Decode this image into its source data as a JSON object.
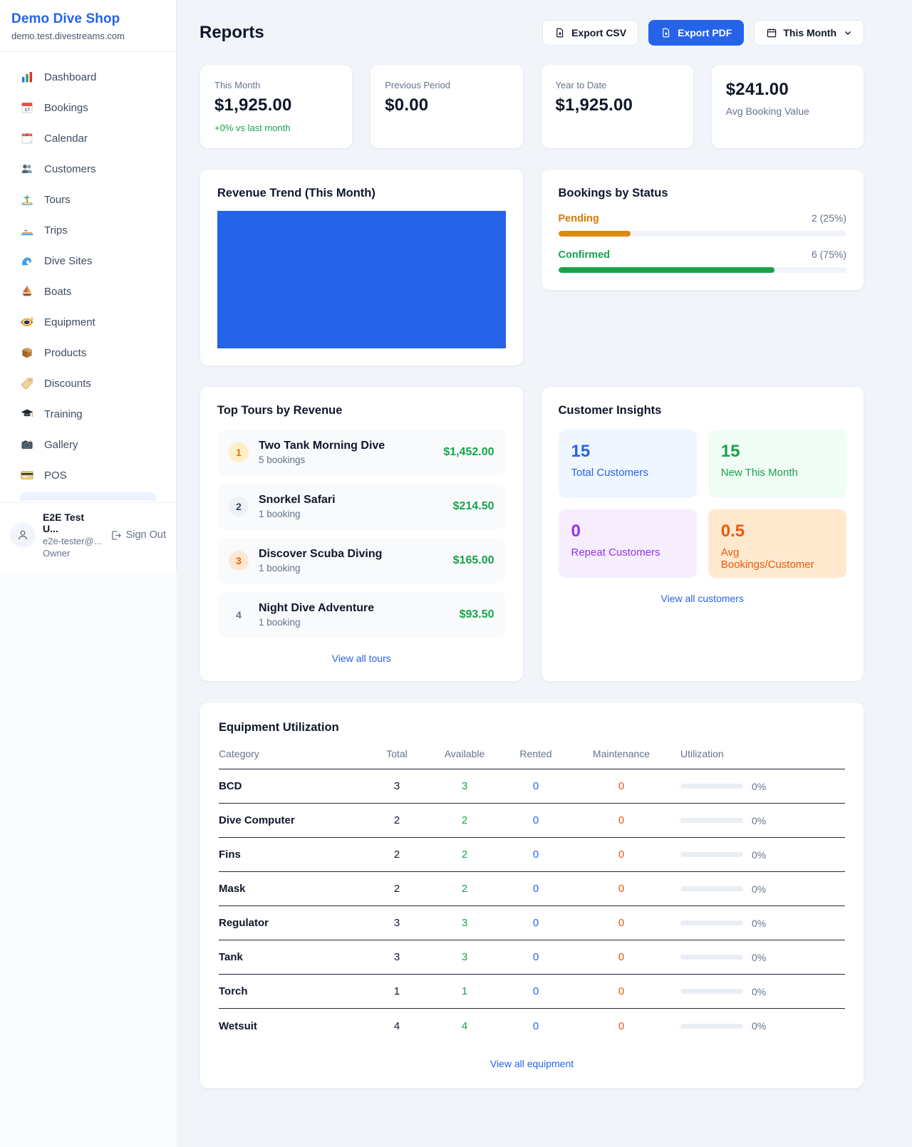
{
  "colors": {
    "accent_blue": "#2563eb",
    "green": "#16a34a",
    "amber": "#d97706",
    "deep_orange": "#ea580c",
    "purple": "#9333ea"
  },
  "sidebar": {
    "brand": {
      "name": "Demo Dive Shop",
      "domain": "demo.test.divestreams.com"
    },
    "nav": [
      {
        "label": "Dashboard",
        "icon": "bar-chart-icon"
      },
      {
        "label": "Bookings",
        "icon": "calendar-17-icon"
      },
      {
        "label": "Calendar",
        "icon": "tear-calendar-icon"
      },
      {
        "label": "Customers",
        "icon": "people-icon"
      },
      {
        "label": "Tours",
        "icon": "island-icon"
      },
      {
        "label": "Trips",
        "icon": "speedboat-icon"
      },
      {
        "label": "Dive Sites",
        "icon": "wave-icon"
      },
      {
        "label": "Boats",
        "icon": "sailboat-icon"
      },
      {
        "label": "Equipment",
        "icon": "dive-mask-icon"
      },
      {
        "label": "Products",
        "icon": "package-icon"
      },
      {
        "label": "Discounts",
        "icon": "tag-icon"
      },
      {
        "label": "Training",
        "icon": "grad-cap-icon"
      },
      {
        "label": "Gallery",
        "icon": "camera-icon"
      },
      {
        "label": "POS",
        "icon": "credit-card-icon"
      }
    ],
    "user": {
      "name": "E2E Test U...",
      "email": "e2e-tester@...",
      "role": "Owner",
      "sign_out": "Sign Out"
    }
  },
  "header": {
    "title": "Reports",
    "export_csv": "Export CSV",
    "export_pdf": "Export PDF",
    "period": "This Month"
  },
  "stats": [
    {
      "label": "This Month",
      "value": "$1,925.00",
      "note": "+0% vs last month"
    },
    {
      "label": "Previous Period",
      "value": "$0.00"
    },
    {
      "label": "Year to Date",
      "value": "$1,925.00"
    },
    {
      "label": "Avg Booking Value",
      "value": "$241.00"
    }
  ],
  "revenue_trend": {
    "title": "Revenue Trend (This Month)",
    "chart": {
      "type": "bar",
      "categories": [
        "This Month"
      ],
      "values": [
        1925
      ],
      "bar_color": "#2563eb"
    }
  },
  "bookings_by_status": {
    "title": "Bookings by Status",
    "rows": [
      {
        "label": "Pending",
        "count_label": "2 (25%)",
        "pct": 25
      },
      {
        "label": "Confirmed",
        "count_label": "6 (75%)",
        "pct": 75
      }
    ]
  },
  "top_tours": {
    "title": "Top Tours by Revenue",
    "items": [
      {
        "rank": "1",
        "name": "Two Tank Morning Dive",
        "bookings": "5 bookings",
        "revenue": "$1,452.00"
      },
      {
        "rank": "2",
        "name": "Snorkel Safari",
        "bookings": "1 booking",
        "revenue": "$214.50"
      },
      {
        "rank": "3",
        "name": "Discover Scuba Diving",
        "bookings": "1 booking",
        "revenue": "$165.00"
      },
      {
        "rank": "4",
        "name": "Night Dive Adventure",
        "bookings": "1 booking",
        "revenue": "$93.50"
      }
    ],
    "link": "View all tours"
  },
  "customer_insights": {
    "title": "Customer Insights",
    "cards": [
      {
        "value": "15",
        "label": "Total Customers"
      },
      {
        "value": "15",
        "label": "New This Month"
      },
      {
        "value": "0",
        "label": "Repeat Customers"
      },
      {
        "value": "0.5",
        "label": "Avg Bookings/Customer"
      }
    ],
    "link": "View all customers"
  },
  "equipment": {
    "title": "Equipment Utilization",
    "columns": [
      "Category",
      "Total",
      "Available",
      "Rented",
      "Maintenance",
      "Utilization"
    ],
    "rows": [
      {
        "category": "BCD",
        "total": "3",
        "available": "3",
        "rented": "0",
        "maintenance": "0",
        "utilization": "0%",
        "util_pct": 0
      },
      {
        "category": "Dive Computer",
        "total": "2",
        "available": "2",
        "rented": "0",
        "maintenance": "0",
        "utilization": "0%",
        "util_pct": 0
      },
      {
        "category": "Fins",
        "total": "2",
        "available": "2",
        "rented": "0",
        "maintenance": "0",
        "utilization": "0%",
        "util_pct": 0
      },
      {
        "category": "Mask",
        "total": "2",
        "available": "2",
        "rented": "0",
        "maintenance": "0",
        "utilization": "0%",
        "util_pct": 0
      },
      {
        "category": "Regulator",
        "total": "3",
        "available": "3",
        "rented": "0",
        "maintenance": "0",
        "utilization": "0%",
        "util_pct": 0
      },
      {
        "category": "Tank",
        "total": "3",
        "available": "3",
        "rented": "0",
        "maintenance": "0",
        "utilization": "0%",
        "util_pct": 0
      },
      {
        "category": "Torch",
        "total": "1",
        "available": "1",
        "rented": "0",
        "maintenance": "0",
        "utilization": "0%",
        "util_pct": 0
      },
      {
        "category": "Wetsuit",
        "total": "4",
        "available": "4",
        "rented": "0",
        "maintenance": "0",
        "utilization": "0%",
        "util_pct": 0
      }
    ],
    "link": "View all equipment"
  }
}
